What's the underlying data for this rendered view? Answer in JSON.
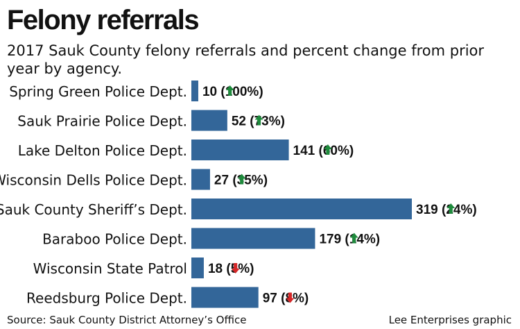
{
  "header": {
    "title": "Felony referrals",
    "subtitle": "2017 Sauk County felony referrals and percent change from prior year by agency."
  },
  "footer": {
    "source": "Source: Sauk County District Attorney’s Office",
    "credit": "Lee Enterprises graphic"
  },
  "colors": {
    "bar": "#336699",
    "up_arrow": "#1e8a3c",
    "down_arrow": "#d62728",
    "text": "#111111"
  },
  "chart_data": {
    "type": "bar",
    "orientation": "horizontal",
    "categories": [
      "Spring Green Police Dept.",
      "Sauk Prairie Police Dept.",
      "Lake Delton Police Dept.",
      "Wisconsin Dells Police Dept.",
      "Sauk County Sheriff’s Dept.",
      "Baraboo Police Dept.",
      "Wisconsin State Patrol",
      "Reedsburg Police Dept."
    ],
    "values": [
      10,
      52,
      141,
      27,
      319,
      179,
      18,
      97
    ],
    "percent_change": [
      100,
      73,
      60,
      35,
      24,
      14,
      -5,
      -8
    ],
    "labels": [
      {
        "value": "10",
        "change": "100%",
        "direction": "up"
      },
      {
        "value": "52",
        "change": "73%",
        "direction": "up"
      },
      {
        "value": "141",
        "change": "60%",
        "direction": "up"
      },
      {
        "value": "27",
        "change": "35%",
        "direction": "up"
      },
      {
        "value": "319",
        "change": "24%",
        "direction": "up"
      },
      {
        "value": "179",
        "change": "14%",
        "direction": "up"
      },
      {
        "value": "18",
        "change": "5%",
        "direction": "down"
      },
      {
        "value": "97",
        "change": "8%",
        "direction": "down"
      }
    ],
    "xlim": [
      0,
      319
    ],
    "grid": false,
    "legend": "none"
  }
}
